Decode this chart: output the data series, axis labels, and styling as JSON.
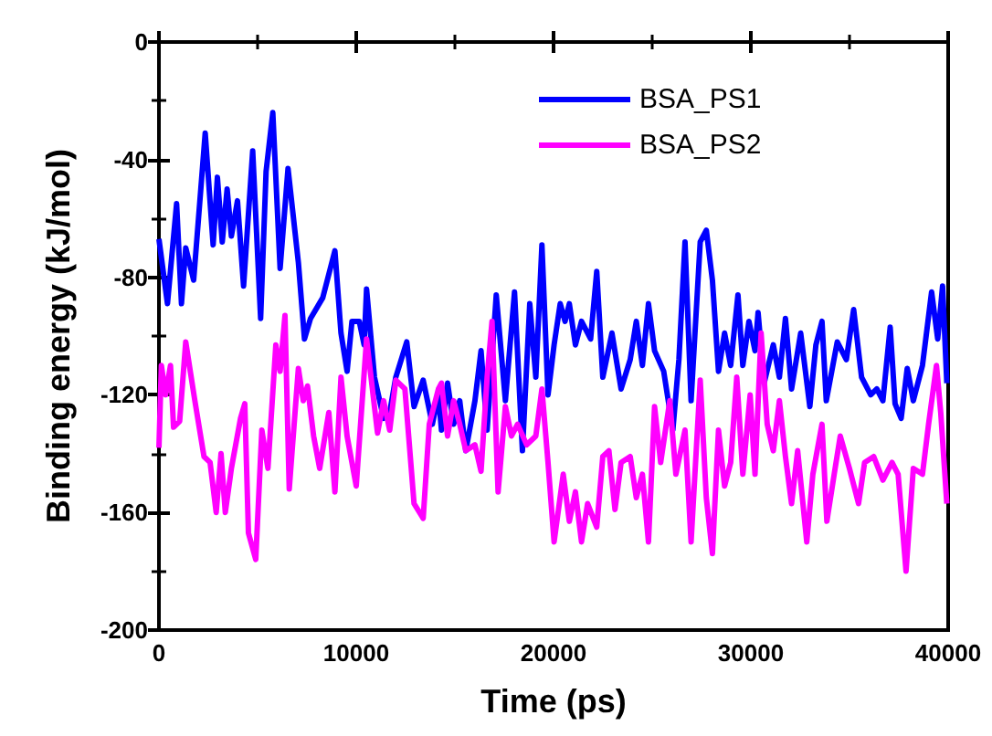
{
  "chart_data": {
    "type": "line",
    "xlabel": "Time (ps)",
    "ylabel": "Binding energy (kJ/mol)",
    "xlim": [
      0,
      40000
    ],
    "xticks": [
      0,
      10000,
      20000,
      30000,
      40000
    ],
    "ylim": [
      -200,
      0
    ],
    "yticks": [
      -200,
      -160,
      -120,
      -80,
      -40,
      0
    ],
    "grid": false,
    "legend": "top right",
    "marker": "none",
    "series": [
      {
        "name": "BSA_PS1",
        "color": "#0000ff",
        "x": [
          0,
          432,
          895,
          1142,
          1358,
          1759,
          2345,
          2747,
          2963,
          3209,
          3456,
          3672,
          3981,
          4290,
          4752,
          5154,
          5431,
          5771,
          6141,
          6542,
          7067,
          7376,
          7684,
          8301,
          8919,
          9227,
          9536,
          9783,
          10153,
          10400,
          10523,
          10924,
          11387,
          11696,
          12005,
          12560,
          12930,
          13393,
          13856,
          14165,
          14319,
          14628,
          14936,
          15245,
          15553,
          16016,
          16325,
          16634,
          17096,
          17559,
          18022,
          18423,
          18794,
          19102,
          19411,
          19720,
          20028,
          20337,
          20584,
          20800,
          21108,
          21417,
          21880,
          22189,
          22497,
          22960,
          23423,
          23886,
          24194,
          24503,
          24811,
          25120,
          25583,
          26046,
          26354,
          26663,
          26971,
          27434,
          27743,
          28052,
          28360,
          28668,
          28977,
          29347,
          29594,
          29903,
          30211,
          30366,
          30674,
          31137,
          31446,
          31754,
          32063,
          32526,
          32989,
          33297,
          33606,
          33822,
          34378,
          34841,
          35211,
          35612,
          36075,
          36383,
          36692,
          37062,
          37309,
          37618,
          37926,
          38235,
          38698,
          39161,
          39470,
          39717,
          39933
        ],
        "values": [
          -67,
          -89,
          -55,
          -89,
          -70,
          -81,
          -31,
          -69,
          -46,
          -68,
          -50,
          -66,
          -54,
          -83,
          -37,
          -94,
          -44,
          -24,
          -77,
          -43,
          -75,
          -101,
          -94,
          -87,
          -71,
          -99,
          -112,
          -95,
          -95,
          -103,
          -84,
          -114,
          -128,
          -126,
          -114,
          -102,
          -124,
          -115,
          -130,
          -120,
          -132,
          -116,
          -130,
          -122,
          -139,
          -122,
          -105,
          -132,
          -86,
          -122,
          -85,
          -139,
          -89,
          -114,
          -69,
          -120,
          -103,
          -89,
          -95,
          -89,
          -103,
          -95,
          -101,
          -78,
          -114,
          -99,
          -118,
          -108,
          -95,
          -110,
          -89,
          -105,
          -112,
          -132,
          -108,
          -68,
          -122,
          -68,
          -64,
          -81,
          -112,
          -99,
          -110,
          -86,
          -110,
          -95,
          -105,
          -92,
          -116,
          -103,
          -114,
          -94,
          -118,
          -99,
          -124,
          -103,
          -95,
          -122,
          -102,
          -108,
          -91,
          -114,
          -120,
          -118,
          -122,
          -97,
          -123,
          -128,
          -111,
          -122,
          -110,
          -85,
          -101,
          -83,
          -116
        ]
      },
      {
        "name": "BSA_PS2",
        "color": "#ff00ff",
        "x": [
          0,
          123,
          339,
          586,
          741,
          1049,
          1358,
          1821,
          2284,
          2592,
          2901,
          3148,
          3364,
          3672,
          4135,
          4351,
          4536,
          4907,
          5215,
          5524,
          5925,
          6141,
          6388,
          6604,
          7067,
          7314,
          7530,
          7839,
          8147,
          8610,
          8919,
          9227,
          9536,
          9999,
          10523,
          11079,
          11387,
          11696,
          12005,
          12467,
          12930,
          13393,
          13702,
          14165,
          14319,
          14628,
          14936,
          15245,
          15553,
          16016,
          16325,
          16634,
          16881,
          17189,
          17559,
          17868,
          18176,
          18639,
          19102,
          19411,
          19720,
          20028,
          20491,
          20800,
          21108,
          21417,
          21726,
          22189,
          22497,
          22806,
          23114,
          23423,
          23886,
          24194,
          24503,
          24811,
          25120,
          25429,
          25892,
          26200,
          26663,
          26971,
          27434,
          27743,
          28052,
          28360,
          28668,
          28977,
          29286,
          29594,
          29964,
          30211,
          30520,
          30829,
          31137,
          31446,
          31754,
          32063,
          32372,
          32834,
          33143,
          33606,
          33853,
          34224,
          34532,
          34995,
          35458,
          35766,
          36229,
          36692,
          37155,
          37464,
          37865,
          38235,
          38698,
          39007,
          39408,
          39624,
          39933
        ],
        "values": [
          -138,
          -110,
          -120,
          -110,
          -131,
          -129,
          -102,
          -122,
          -141,
          -143,
          -160,
          -140,
          -160,
          -145,
          -128,
          -123,
          -167,
          -176,
          -132,
          -145,
          -103,
          -112,
          -93,
          -152,
          -111,
          -122,
          -117,
          -134,
          -145,
          -126,
          -153,
          -114,
          -134,
          -151,
          -101,
          -133,
          -122,
          -132,
          -115,
          -118,
          -157,
          -162,
          -130,
          -118,
          -116,
          -134,
          -122,
          -130,
          -139,
          -137,
          -146,
          -114,
          -95,
          -153,
          -124,
          -134,
          -130,
          -137,
          -134,
          -118,
          -143,
          -170,
          -147,
          -163,
          -153,
          -170,
          -157,
          -165,
          -141,
          -139,
          -159,
          -143,
          -141,
          -155,
          -147,
          -170,
          -124,
          -143,
          -122,
          -147,
          -132,
          -170,
          -115,
          -155,
          -174,
          -132,
          -151,
          -143,
          -114,
          -147,
          -120,
          -147,
          -99,
          -130,
          -139,
          -122,
          -141,
          -157,
          -139,
          -170,
          -147,
          -130,
          -163,
          -147,
          -134,
          -145,
          -157,
          -143,
          -141,
          -149,
          -143,
          -147,
          -180,
          -145,
          -147,
          -130,
          -110,
          -126,
          -157
        ]
      }
    ]
  }
}
